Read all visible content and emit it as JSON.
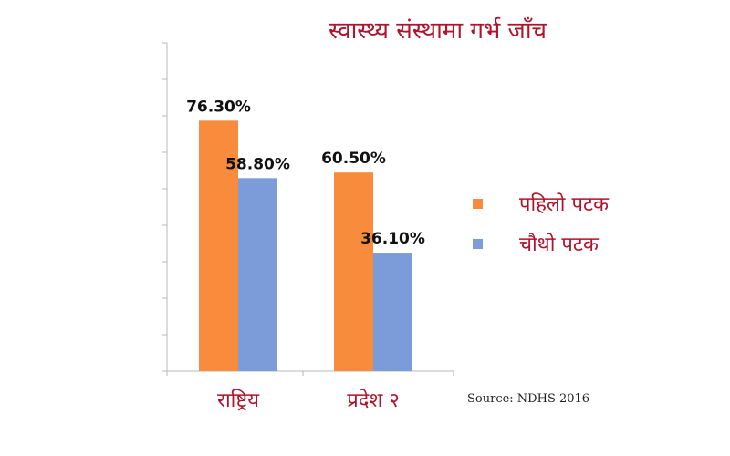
{
  "title": "स्वास्थ्य संस्थामा गर्भ जाँच",
  "source": "Source: NDHS 2016",
  "colors": {
    "first_visit": "#f98b3c",
    "fourth_visit": "#7b9cd8",
    "text_accent": "#b0132b"
  },
  "chart_data": {
    "type": "bar",
    "title": "स्वास्थ्य संस्थामा गर्भ जाँच",
    "categories": [
      "राष्ट्रिय",
      "प्रदेश २"
    ],
    "series": [
      {
        "name": "पहिलो पटक",
        "values": [
          76.3,
          60.5
        ],
        "labels": [
          "76.30%",
          "60.50%"
        ],
        "color": "#f98b3c"
      },
      {
        "name": "चौथो पटक",
        "values": [
          58.8,
          36.1
        ],
        "labels": [
          "58.80%",
          "36.10%"
        ],
        "color": "#7b9cd8"
      }
    ],
    "ylim": [
      0,
      100
    ],
    "xlabel": "",
    "ylabel": "",
    "grid": false,
    "legend_position": "right"
  }
}
